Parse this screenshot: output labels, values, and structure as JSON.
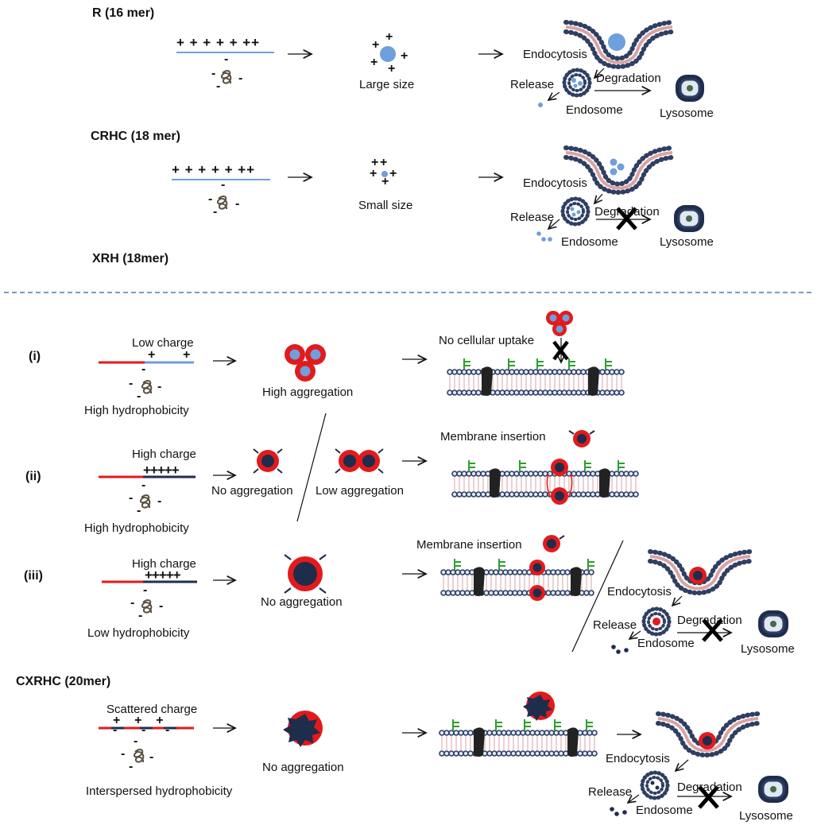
{
  "sections": {
    "r": {
      "title": "R (16 mer)",
      "size": "Large size"
    },
    "crhc": {
      "title": "CRHC (18 mer)",
      "size": "Small size"
    },
    "xrh": {
      "title": "XRH  (18mer)"
    },
    "cxrhc": {
      "title": "CXRHC (20mer)"
    }
  },
  "pathway": {
    "endocytosis": "Endocytosis",
    "release": "Release",
    "degradation": "Degradation",
    "endosome": "Endosome",
    "lysosome": "Lysosome"
  },
  "cases": {
    "i": {
      "label": "(i)",
      "charge": "Low charge",
      "hydro": "High hydrophobicity",
      "agg": "High aggregation",
      "uptake": "No cellular uptake"
    },
    "ii": {
      "label": "(ii)",
      "charge": "High charge",
      "hydro": "High hydrophobicity",
      "agg1": "No aggregation",
      "agg2": "Low aggregation",
      "membrane": "Membrane insertion"
    },
    "iii": {
      "label": "(iii)",
      "charge": "High charge",
      "hydro": "Low hydrophobicity",
      "agg": "No aggregation",
      "membrane": "Membrane insertion"
    },
    "cx": {
      "charge": "Scattered charge",
      "hydro": "Interspersed hydrophobicity",
      "agg": "No aggregation"
    }
  },
  "symbols": {
    "plus": "+",
    "minus": "-",
    "arrow": "→",
    "r_charges": "+ + + + + ++",
    "crhc_charges": "+ + + + + ++",
    "ii_charges": "+++++",
    "iii_charges": "+++++",
    "cx_charges": "+    +    +"
  },
  "colors": {
    "blue_polymer": "#6f9fdc",
    "red_polymer": "#e31a1c",
    "navy": "#1f2d4d",
    "membrane_bead": "#2f3f63",
    "membrane_tail": "#d9a3a3",
    "green_receptor": "#2ca02c",
    "divider": "#4a7bb7",
    "rna_coil": "#5a5040"
  }
}
